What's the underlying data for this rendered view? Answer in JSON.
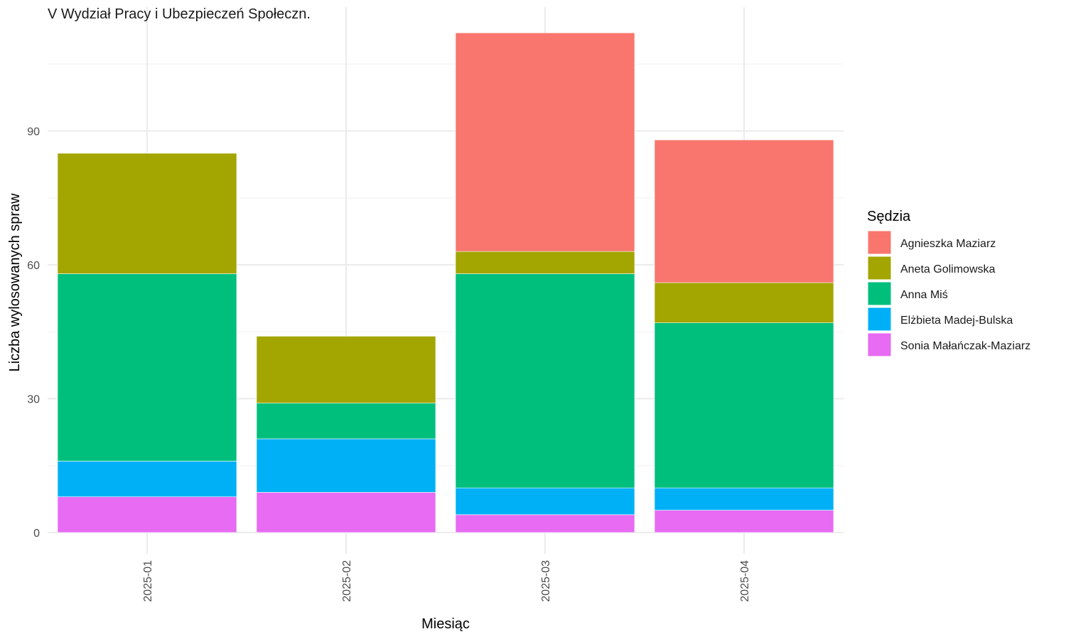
{
  "chart_data": {
    "type": "bar",
    "stacked": true,
    "title": "V Wydział Pracy i Ubezpieczeń Społeczn.",
    "xlabel": "Miesiąc",
    "ylabel": "Liczba wylosowanych spraw",
    "categories": [
      "2025-01",
      "2025-02",
      "2025-03",
      "2025-04"
    ],
    "ylim": [
      0,
      118
    ],
    "yticks": [
      0,
      30,
      60,
      90
    ],
    "grid": true,
    "legend": {
      "title": "Sędzia",
      "position": "right"
    },
    "series": [
      {
        "name": "Sonia Małańczak-Maziarz",
        "color": "#E76BF3",
        "values": [
          8,
          9,
          4,
          5
        ]
      },
      {
        "name": "Elżbieta Madej-Bulska",
        "color": "#00B0F6",
        "values": [
          8,
          12,
          6,
          5
        ]
      },
      {
        "name": "Anna Miś",
        "color": "#00BF7D",
        "values": [
          42,
          8,
          48,
          37
        ]
      },
      {
        "name": "Aneta Golimowska",
        "color": "#A3A500",
        "values": [
          27,
          15,
          5,
          9
        ]
      },
      {
        "name": "Agnieszka Maziarz",
        "color": "#F8766D",
        "values": [
          0,
          0,
          49,
          32
        ]
      }
    ],
    "legend_order": [
      "Agnieszka Maziarz",
      "Aneta Golimowska",
      "Anna Miś",
      "Elżbieta Madej-Bulska",
      "Sonia Małańczak-Maziarz"
    ]
  }
}
